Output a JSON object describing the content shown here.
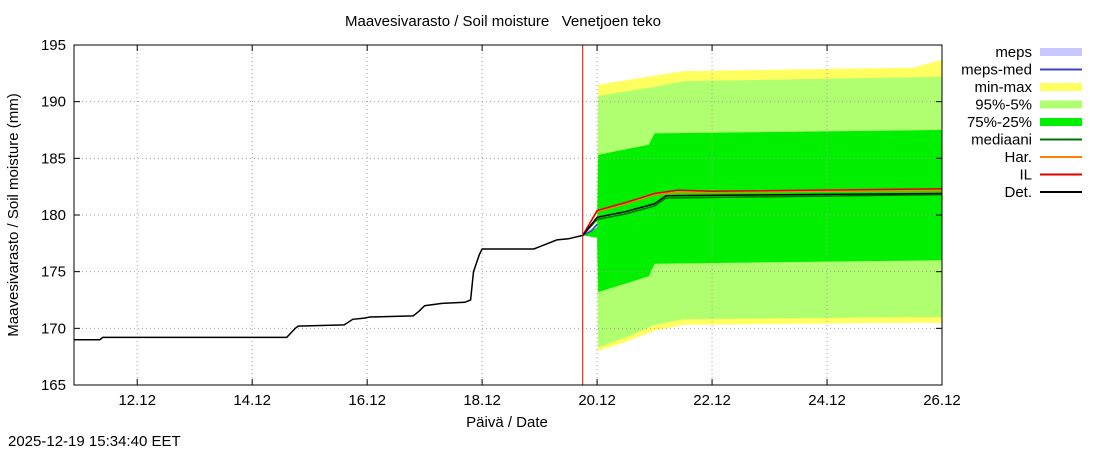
{
  "chart_data": {
    "type": "area",
    "title": "Maavesivarasto / Soil moisture   Venetjoen teko",
    "xlabel": "Päivä / Date",
    "ylabel": "Maavesivarasto / Soil moisture (mm)",
    "timestamp": "2025-12-19 15:34:40 EET",
    "xlim": [
      10.9,
      26.0
    ],
    "ylim": [
      165,
      195
    ],
    "grid": true,
    "legend_position": "top-right outside",
    "x_ticks": [
      {
        "value": 12,
        "label": "12.12"
      },
      {
        "value": 14,
        "label": "14.12"
      },
      {
        "value": 16,
        "label": "16.12"
      },
      {
        "value": 18,
        "label": "18.12"
      },
      {
        "value": 20,
        "label": "20.12"
      },
      {
        "value": 22,
        "label": "22.12"
      },
      {
        "value": 24,
        "label": "24.12"
      },
      {
        "value": 26,
        "label": "26.12"
      }
    ],
    "y_ticks": [
      {
        "value": 165,
        "label": "165"
      },
      {
        "value": 170,
        "label": "170"
      },
      {
        "value": 175,
        "label": "175"
      },
      {
        "value": 180,
        "label": "180"
      },
      {
        "value": 185,
        "label": "185"
      },
      {
        "value": 190,
        "label": "190"
      },
      {
        "value": 195,
        "label": "195"
      }
    ],
    "forecast_start": 19.75,
    "legend": [
      {
        "key": "meps",
        "label": "meps",
        "color": "#c8c8ff",
        "kind": "box"
      },
      {
        "key": "meps_med",
        "label": "meps-med",
        "color": "#4040c0",
        "kind": "line"
      },
      {
        "key": "minmax",
        "label": "min-max",
        "color": "#ffff60",
        "kind": "box"
      },
      {
        "key": "p95_5",
        "label": "95%-5%",
        "color": "#b0ff70",
        "kind": "box"
      },
      {
        "key": "p75_25",
        "label": "75%-25%",
        "color": "#00f000",
        "kind": "box"
      },
      {
        "key": "mediaani",
        "label": "mediaani",
        "color": "#007000",
        "kind": "line"
      },
      {
        "key": "har",
        "label": "Har.",
        "color": "#ff8000",
        "kind": "line"
      },
      {
        "key": "il",
        "label": "IL",
        "color": "#e00000",
        "kind": "line"
      },
      {
        "key": "det",
        "label": "Det.",
        "color": "#000000",
        "kind": "line"
      }
    ],
    "history": {
      "x": [
        10.9,
        11.35,
        11.4,
        14.6,
        14.75,
        14.8,
        15.6,
        15.75,
        15.95,
        16.05,
        16.8,
        16.9,
        17.0,
        17.3,
        17.7,
        17.8,
        17.85,
        17.95,
        18.0,
        18.2,
        18.9,
        19.0,
        19.15,
        19.3,
        19.5,
        19.75
      ],
      "y": [
        169.0,
        169.0,
        169.2,
        169.2,
        170.0,
        170.2,
        170.3,
        170.8,
        170.9,
        171.0,
        171.1,
        171.5,
        172.0,
        172.2,
        172.3,
        172.5,
        175.0,
        176.5,
        177.0,
        177.0,
        177.0,
        177.2,
        177.5,
        177.8,
        177.9,
        178.2
      ]
    },
    "bands": {
      "minmax_upper": {
        "x": [
          19.75,
          20.0,
          20.02,
          21.0,
          21.5,
          25.5,
          26.0
        ],
        "y": [
          178.2,
          179.0,
          191.5,
          192.3,
          192.7,
          193.0,
          193.7
        ]
      },
      "minmax_lower": {
        "x": [
          19.75,
          20.0,
          20.02,
          20.5,
          21.0,
          21.5,
          25.5,
          26.0
        ],
        "y": [
          178.2,
          178.0,
          168.0,
          168.8,
          169.8,
          170.3,
          170.5,
          170.5
        ]
      },
      "p95_upper": {
        "x": [
          19.75,
          20.0,
          20.02,
          21.0,
          21.5,
          26.0
        ],
        "y": [
          178.2,
          179.0,
          190.5,
          191.3,
          191.8,
          192.2
        ]
      },
      "p95_lower": {
        "x": [
          19.75,
          20.0,
          20.02,
          20.5,
          21.0,
          21.5,
          25.5,
          26.0
        ],
        "y": [
          178.2,
          178.0,
          168.3,
          169.2,
          170.3,
          170.8,
          171.0,
          171.0
        ]
      },
      "p75_upper": {
        "x": [
          19.75,
          20.0,
          20.02,
          20.9,
          21.0,
          26.0
        ],
        "y": [
          178.2,
          179.0,
          185.3,
          186.2,
          187.2,
          187.5
        ]
      },
      "p75_lower": {
        "x": [
          19.75,
          20.0,
          20.02,
          20.9,
          21.0,
          26.0
        ],
        "y": [
          178.2,
          178.0,
          173.2,
          174.6,
          175.7,
          176.0
        ]
      }
    },
    "series": [
      {
        "key": "meps",
        "name": "meps",
        "x": [
          19.75,
          19.9,
          20.0
        ],
        "y": [
          178.2,
          178.7,
          179.0
        ]
      },
      {
        "key": "meps_med",
        "name": "meps-med",
        "x": [
          19.75,
          19.9,
          20.0
        ],
        "y": [
          178.2,
          178.6,
          179.2
        ]
      },
      {
        "key": "mediaani",
        "name": "mediaani",
        "x": [
          19.75,
          20.0,
          20.5,
          21.0,
          21.2,
          26.0
        ],
        "y": [
          178.2,
          179.6,
          180.1,
          180.8,
          181.5,
          181.8
        ]
      },
      {
        "key": "har",
        "name": "Har.",
        "x": [
          19.75,
          20.0,
          20.5,
          21.0,
          21.4,
          22.0,
          26.0
        ],
        "y": [
          178.2,
          180.3,
          181.0,
          181.8,
          182.0,
          182.0,
          182.2
        ]
      },
      {
        "key": "il",
        "name": "IL",
        "x": [
          19.75,
          20.0,
          20.5,
          21.0,
          21.4,
          22.0,
          26.0
        ],
        "y": [
          178.2,
          180.4,
          181.1,
          181.9,
          182.2,
          182.1,
          182.3
        ]
      },
      {
        "key": "det",
        "name": "Det.",
        "x": [
          19.75,
          20.0,
          20.5,
          21.0,
          21.2,
          26.0
        ],
        "y": [
          178.2,
          179.8,
          180.3,
          181.0,
          181.7,
          181.9
        ]
      }
    ]
  }
}
